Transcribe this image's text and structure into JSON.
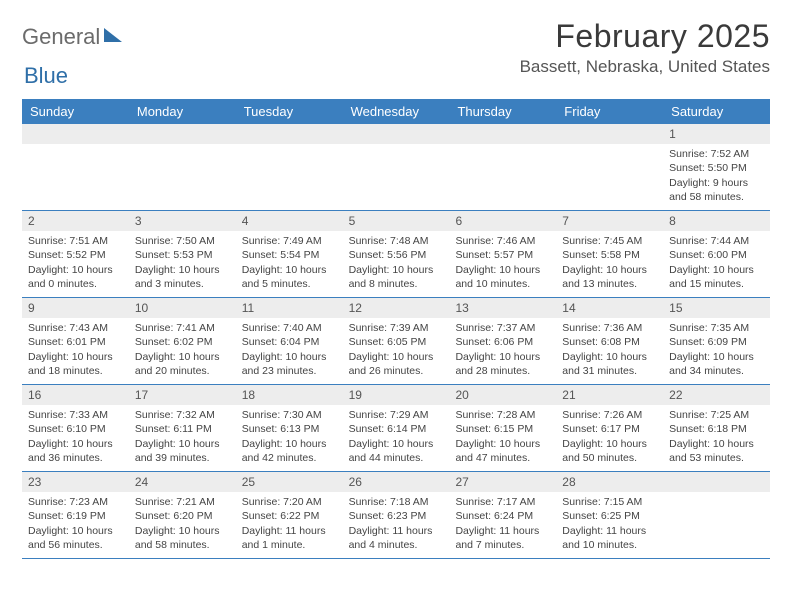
{
  "logo": {
    "word1": "General",
    "word2": "Blue"
  },
  "title": "February 2025",
  "location": "Bassett, Nebraska, United States",
  "style": {
    "header_bg": "#3b7fbf",
    "header_text": "#ffffff",
    "daynum_bg": "#ededed",
    "body_text": "#444444",
    "title_color": "#3a3a3a",
    "logo_gray": "#6b6b6b",
    "logo_blue": "#2f6fa8",
    "divider": "#3b7fbf",
    "background": "#ffffff",
    "title_fontsize": 32,
    "location_fontsize": 17,
    "header_fontsize": 13,
    "cell_fontsize": 10.5
  },
  "day_headers": [
    "Sunday",
    "Monday",
    "Tuesday",
    "Wednesday",
    "Thursday",
    "Friday",
    "Saturday"
  ],
  "weeks": [
    [
      {
        "n": "",
        "lines": []
      },
      {
        "n": "",
        "lines": []
      },
      {
        "n": "",
        "lines": []
      },
      {
        "n": "",
        "lines": []
      },
      {
        "n": "",
        "lines": []
      },
      {
        "n": "",
        "lines": []
      },
      {
        "n": "1",
        "lines": [
          "Sunrise: 7:52 AM",
          "Sunset: 5:50 PM",
          "Daylight: 9 hours and 58 minutes."
        ]
      }
    ],
    [
      {
        "n": "2",
        "lines": [
          "Sunrise: 7:51 AM",
          "Sunset: 5:52 PM",
          "Daylight: 10 hours and 0 minutes."
        ]
      },
      {
        "n": "3",
        "lines": [
          "Sunrise: 7:50 AM",
          "Sunset: 5:53 PM",
          "Daylight: 10 hours and 3 minutes."
        ]
      },
      {
        "n": "4",
        "lines": [
          "Sunrise: 7:49 AM",
          "Sunset: 5:54 PM",
          "Daylight: 10 hours and 5 minutes."
        ]
      },
      {
        "n": "5",
        "lines": [
          "Sunrise: 7:48 AM",
          "Sunset: 5:56 PM",
          "Daylight: 10 hours and 8 minutes."
        ]
      },
      {
        "n": "6",
        "lines": [
          "Sunrise: 7:46 AM",
          "Sunset: 5:57 PM",
          "Daylight: 10 hours and 10 minutes."
        ]
      },
      {
        "n": "7",
        "lines": [
          "Sunrise: 7:45 AM",
          "Sunset: 5:58 PM",
          "Daylight: 10 hours and 13 minutes."
        ]
      },
      {
        "n": "8",
        "lines": [
          "Sunrise: 7:44 AM",
          "Sunset: 6:00 PM",
          "Daylight: 10 hours and 15 minutes."
        ]
      }
    ],
    [
      {
        "n": "9",
        "lines": [
          "Sunrise: 7:43 AM",
          "Sunset: 6:01 PM",
          "Daylight: 10 hours and 18 minutes."
        ]
      },
      {
        "n": "10",
        "lines": [
          "Sunrise: 7:41 AM",
          "Sunset: 6:02 PM",
          "Daylight: 10 hours and 20 minutes."
        ]
      },
      {
        "n": "11",
        "lines": [
          "Sunrise: 7:40 AM",
          "Sunset: 6:04 PM",
          "Daylight: 10 hours and 23 minutes."
        ]
      },
      {
        "n": "12",
        "lines": [
          "Sunrise: 7:39 AM",
          "Sunset: 6:05 PM",
          "Daylight: 10 hours and 26 minutes."
        ]
      },
      {
        "n": "13",
        "lines": [
          "Sunrise: 7:37 AM",
          "Sunset: 6:06 PM",
          "Daylight: 10 hours and 28 minutes."
        ]
      },
      {
        "n": "14",
        "lines": [
          "Sunrise: 7:36 AM",
          "Sunset: 6:08 PM",
          "Daylight: 10 hours and 31 minutes."
        ]
      },
      {
        "n": "15",
        "lines": [
          "Sunrise: 7:35 AM",
          "Sunset: 6:09 PM",
          "Daylight: 10 hours and 34 minutes."
        ]
      }
    ],
    [
      {
        "n": "16",
        "lines": [
          "Sunrise: 7:33 AM",
          "Sunset: 6:10 PM",
          "Daylight: 10 hours and 36 minutes."
        ]
      },
      {
        "n": "17",
        "lines": [
          "Sunrise: 7:32 AM",
          "Sunset: 6:11 PM",
          "Daylight: 10 hours and 39 minutes."
        ]
      },
      {
        "n": "18",
        "lines": [
          "Sunrise: 7:30 AM",
          "Sunset: 6:13 PM",
          "Daylight: 10 hours and 42 minutes."
        ]
      },
      {
        "n": "19",
        "lines": [
          "Sunrise: 7:29 AM",
          "Sunset: 6:14 PM",
          "Daylight: 10 hours and 44 minutes."
        ]
      },
      {
        "n": "20",
        "lines": [
          "Sunrise: 7:28 AM",
          "Sunset: 6:15 PM",
          "Daylight: 10 hours and 47 minutes."
        ]
      },
      {
        "n": "21",
        "lines": [
          "Sunrise: 7:26 AM",
          "Sunset: 6:17 PM",
          "Daylight: 10 hours and 50 minutes."
        ]
      },
      {
        "n": "22",
        "lines": [
          "Sunrise: 7:25 AM",
          "Sunset: 6:18 PM",
          "Daylight: 10 hours and 53 minutes."
        ]
      }
    ],
    [
      {
        "n": "23",
        "lines": [
          "Sunrise: 7:23 AM",
          "Sunset: 6:19 PM",
          "Daylight: 10 hours and 56 minutes."
        ]
      },
      {
        "n": "24",
        "lines": [
          "Sunrise: 7:21 AM",
          "Sunset: 6:20 PM",
          "Daylight: 10 hours and 58 minutes."
        ]
      },
      {
        "n": "25",
        "lines": [
          "Sunrise: 7:20 AM",
          "Sunset: 6:22 PM",
          "Daylight: 11 hours and 1 minute."
        ]
      },
      {
        "n": "26",
        "lines": [
          "Sunrise: 7:18 AM",
          "Sunset: 6:23 PM",
          "Daylight: 11 hours and 4 minutes."
        ]
      },
      {
        "n": "27",
        "lines": [
          "Sunrise: 7:17 AM",
          "Sunset: 6:24 PM",
          "Daylight: 11 hours and 7 minutes."
        ]
      },
      {
        "n": "28",
        "lines": [
          "Sunrise: 7:15 AM",
          "Sunset: 6:25 PM",
          "Daylight: 11 hours and 10 minutes."
        ]
      },
      {
        "n": "",
        "lines": []
      }
    ]
  ]
}
